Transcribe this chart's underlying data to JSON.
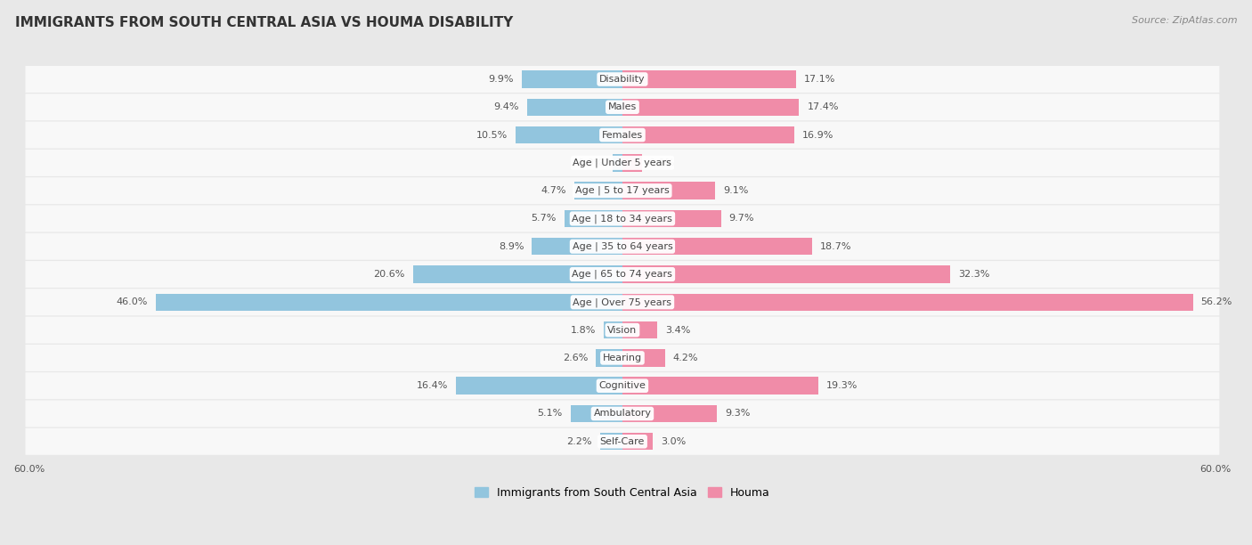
{
  "title": "IMMIGRANTS FROM SOUTH CENTRAL ASIA VS HOUMA DISABILITY",
  "source": "Source: ZipAtlas.com",
  "categories": [
    "Disability",
    "Males",
    "Females",
    "Age | Under 5 years",
    "Age | 5 to 17 years",
    "Age | 18 to 34 years",
    "Age | 35 to 64 years",
    "Age | 65 to 74 years",
    "Age | Over 75 years",
    "Vision",
    "Hearing",
    "Cognitive",
    "Ambulatory",
    "Self-Care"
  ],
  "left_values": [
    9.9,
    9.4,
    10.5,
    1.0,
    4.7,
    5.7,
    8.9,
    20.6,
    46.0,
    1.8,
    2.6,
    16.4,
    5.1,
    2.2
  ],
  "right_values": [
    17.1,
    17.4,
    16.9,
    1.9,
    9.1,
    9.7,
    18.7,
    32.3,
    56.2,
    3.4,
    4.2,
    19.3,
    9.3,
    3.0
  ],
  "left_color": "#92C5DE",
  "right_color": "#F08CA8",
  "left_label": "Immigrants from South Central Asia",
  "right_label": "Houma",
  "axis_max": 60.0,
  "bg_color": "#e8e8e8",
  "row_color_odd": "#f0f0f0",
  "row_color_even": "#fafafa",
  "title_fontsize": 11,
  "label_fontsize": 8,
  "value_fontsize": 8,
  "legend_fontsize": 9
}
